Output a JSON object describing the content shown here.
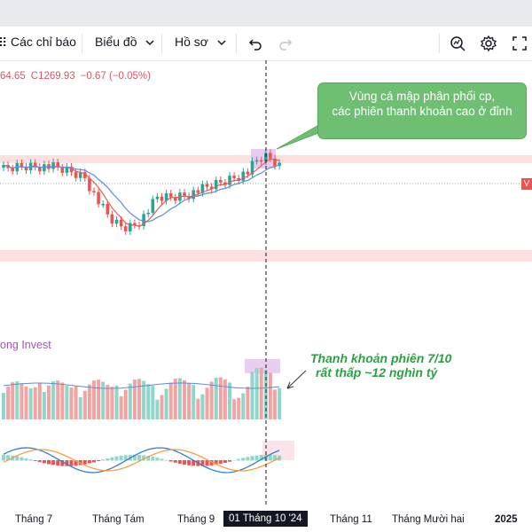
{
  "toolbar": {
    "indicators_label": "Các chỉ báo",
    "chart_label": "Biểu đồ",
    "profile_label": "Hồ sơ"
  },
  "ohlc": {
    "partial_value": "64.65",
    "close_label": "C",
    "close_value": "1269.93",
    "change": "−0.67 (−0.05%)"
  },
  "callout_top": {
    "line1": "Vùng cá mập phân phối cp,",
    "line2": "các phiên thanh khoản cao ở đỉnh"
  },
  "price_tag": "V",
  "study_title": "ong Invest",
  "note_volume": {
    "line1": "Thanh khoản phiên 7/10",
    "line2": "rất thấp ~12 nghìn tỷ"
  },
  "time_axis": {
    "labels": [
      "Tháng 7",
      "Tháng Tám",
      "Tháng 9",
      "Tháng 11",
      "Tháng Mười hai",
      "2025"
    ],
    "current": "01 Tháng 10 '24"
  },
  "colors": {
    "up": "#26a69a",
    "down": "#ef5350",
    "vol_up": "#8fd6cb",
    "vol_down": "#f4a3a3",
    "ma_fast": "#e55b5b",
    "ma_slow": "#5b8fd6",
    "zone": "#fde0e0",
    "highlight": "#e6c6ee",
    "callout": "#6fbf73"
  }
}
